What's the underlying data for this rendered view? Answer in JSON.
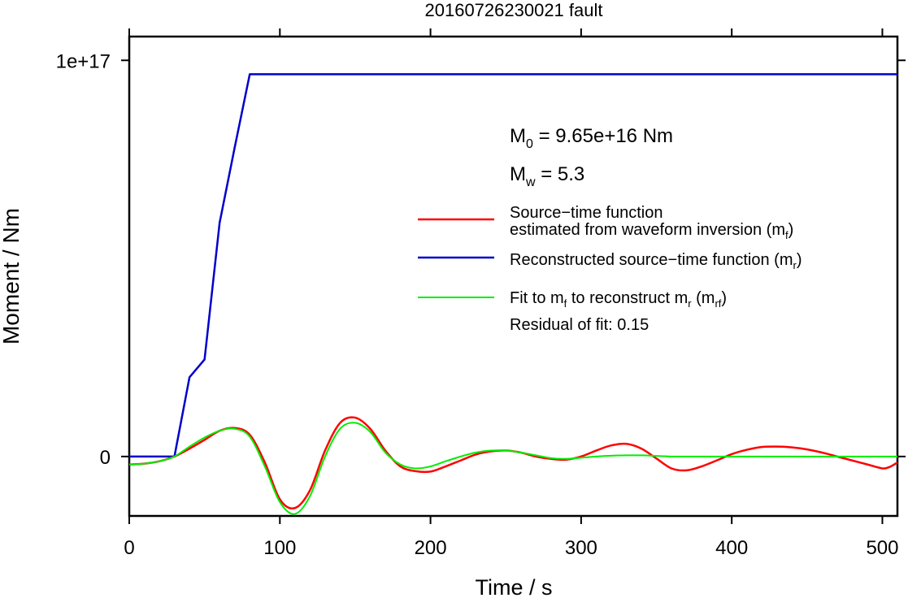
{
  "chart_data": {
    "type": "line",
    "title": "20160726230021 fault",
    "xlabel": "Time / s",
    "ylabel": "Moment / Nm",
    "xlim": [
      0,
      510
    ],
    "ylim": [
      -1.5e+16,
      1.06e+17
    ],
    "x_ticks": [
      {
        "value": 0,
        "label": "0"
      },
      {
        "value": 100,
        "label": "100"
      },
      {
        "value": 200,
        "label": "200"
      },
      {
        "value": 300,
        "label": "300"
      },
      {
        "value": 400,
        "label": "400"
      },
      {
        "value": 500,
        "label": "500"
      }
    ],
    "y_ticks": [
      {
        "value": 0,
        "label": "0"
      },
      {
        "value": 1e+17,
        "label": "1e+17"
      }
    ],
    "grid": false,
    "legend_position": "right",
    "annotations": {
      "m0_prefix": "M",
      "m0_sub": "0",
      "m0_value": " = 9.65e+16 Nm",
      "mw_prefix": "M",
      "mw_sub": "w",
      "mw_value": " = 5.3",
      "residual": "Residual of fit: 0.15"
    },
    "legend": [
      {
        "line1": "Source−time function",
        "line2_pre": "estimated from waveform inversion (m",
        "line2_sub": "f",
        "line2_post": ")",
        "color": "#ff0000"
      },
      {
        "line1_pre": "Reconstructed source−time function (m",
        "line1_sub": "r",
        "line1_post": ")",
        "color": "#0000cc"
      },
      {
        "line1_pre": "Fit to m",
        "line1_sub": "f",
        "line1_mid": " to reconstruct m",
        "line1_sub2": "r",
        "line1_mid2": " (m",
        "line1_sub3": "rf",
        "line1_post": ")",
        "color": "#00ee00"
      }
    ],
    "series": [
      {
        "color": "#0000cc",
        "x": [
          0,
          30,
          40,
          50,
          60,
          70,
          80,
          510
        ],
        "y": [
          0,
          0,
          2e+16,
          2.45e+16,
          5.9e+16,
          7.8e+16,
          9.65e+16,
          9.65e+16
        ]
      },
      {
        "color": "#ff0000",
        "x": [
          0,
          10,
          20,
          30,
          40,
          50,
          60,
          70,
          80,
          90,
          100,
          110,
          120,
          130,
          140,
          150,
          160,
          170,
          180,
          190,
          200,
          210,
          220,
          230,
          240,
          250,
          260,
          270,
          280,
          290,
          300,
          310,
          320,
          330,
          340,
          350,
          360,
          370,
          380,
          390,
          400,
          410,
          420,
          430,
          440,
          450,
          460,
          470,
          480,
          490,
          500,
          505,
          510
        ],
        "y": [
          -2000000000000000.0,
          -1800000000000000.0,
          -1200000000000000.0,
          0,
          2000000000000000.0,
          4200000000000000.0,
          6500000000000000.0,
          7200000000000000.0,
          5500000000000000.0,
          -1500000000000000.0,
          -1.08e+16,
          -1.3e+16,
          -8500000000000000.0,
          1500000000000000.0,
          8500000000000000.0,
          9800000000000000.0,
          7000000000000000.0,
          1500000000000000.0,
          -2500000000000000.0,
          -3700000000000000.0,
          -3800000000000000.0,
          -2500000000000000.0,
          -1000000000000000.0,
          500000000000000.0,
          1300000000000000.0,
          1500000000000000.0,
          1000000000000000.0,
          0,
          -600000000000000.0,
          -800000000000000.0,
          0,
          1500000000000000.0,
          2800000000000000.0,
          3200000000000000.0,
          2000000000000000.0,
          -500000000000000.0,
          -3000000000000000.0,
          -3500000000000000.0,
          -2500000000000000.0,
          -1000000000000000.0,
          600000000000000.0,
          1700000000000000.0,
          2400000000000000.0,
          2500000000000000.0,
          2300000000000000.0,
          1800000000000000.0,
          1000000000000000.0,
          0,
          -1000000000000000.0,
          -2000000000000000.0,
          -3000000000000000.0,
          -2600000000000000.0,
          -1500000000000000.0
        ]
      },
      {
        "color": "#00ee00",
        "x": [
          0,
          10,
          20,
          30,
          40,
          50,
          60,
          70,
          80,
          90,
          100,
          110,
          120,
          130,
          140,
          150,
          160,
          170,
          180,
          190,
          200,
          210,
          220,
          230,
          240,
          250,
          260,
          270,
          280,
          290,
          300,
          310,
          320,
          330,
          340,
          350,
          360,
          380,
          400,
          450,
          510
        ],
        "y": [
          -2000000000000000.0,
          -1800000000000000.0,
          -1200000000000000.0,
          0,
          2500000000000000.0,
          4800000000000000.0,
          6500000000000000.0,
          7000000000000000.0,
          5000000000000000.0,
          -2500000000000000.0,
          -1.15e+16,
          -1.45e+16,
          -1e+16,
          0,
          7000000000000000.0,
          8500000000000000.0,
          6200000000000000.0,
          1000000000000000.0,
          -2000000000000000.0,
          -3000000000000000.0,
          -2500000000000000.0,
          -1200000000000000.0,
          0,
          1000000000000000.0,
          1500000000000000.0,
          1500000000000000.0,
          1000000000000000.0,
          300000000000000.0,
          -400000000000000.0,
          -600000000000000.0,
          -300000000000000.0,
          0,
          200000000000000.0,
          300000000000000.0,
          300000000000000.0,
          150000000000000.0,
          0,
          0,
          0,
          0,
          0
        ]
      }
    ]
  }
}
